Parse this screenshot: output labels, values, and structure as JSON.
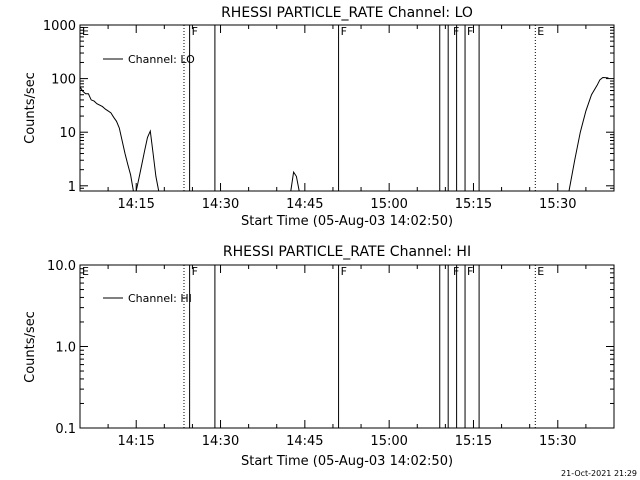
{
  "chart_data": [
    {
      "type": "line",
      "title": "RHESSI PARTICLE_RATE Channel: LO",
      "xlabel": "Start Time (05-Aug-03 14:02:50)",
      "ylabel": "Counts/sec",
      "yscale": "log",
      "ylim": [
        0.8,
        1000
      ],
      "xlim": [
        "14:05:00",
        "15:40:00"
      ],
      "xticks": [
        "14:15",
        "14:30",
        "14:45",
        "15:00",
        "15:15",
        "15:30"
      ],
      "yticks": [
        "1",
        "10",
        "100",
        "1000"
      ],
      "legend": {
        "label": "Channel: LO",
        "position": "top-left"
      },
      "series": [
        {
          "name": "Channel: LO",
          "segments": [
            {
              "x": [
                "14:05:00",
                "14:05:30",
                "14:06:00",
                "14:06:30",
                "14:07:00",
                "14:07:30",
                "14:08:00",
                "14:09:00",
                "14:09:30",
                "14:10:00",
                "14:10:30",
                "14:11:00",
                "14:11:30",
                "14:12:00",
                "14:13:00",
                "14:13:30",
                "14:14:00",
                "14:14:30",
                "14:15:00",
                "14:15:30",
                "14:16:00",
                "14:16:30",
                "14:17:00",
                "14:17:30",
                "14:18:00",
                "14:18:30",
                "14:19:00",
                "14:19:30"
              ],
              "y": [
                70,
                58,
                52,
                52,
                40,
                38,
                34,
                30,
                27,
                25,
                23,
                19,
                16,
                12,
                4,
                2.5,
                1.6,
                0.8,
                0.8,
                1.4,
                2.5,
                4.5,
                8,
                10.5,
                4,
                1.5,
                0.8,
                0.8
              ]
            },
            {
              "x": [
                "14:42:30",
                "14:43:00",
                "14:43:30",
                "14:44:00"
              ],
              "y": [
                0.8,
                1.8,
                1.5,
                0.8
              ]
            },
            {
              "x": [
                "15:32:00",
                "15:33:00",
                "15:34:00",
                "15:35:00",
                "15:36:00",
                "15:37:00",
                "15:37:30",
                "15:38:00",
                "15:39:00"
              ],
              "y": [
                0.8,
                3,
                10,
                25,
                50,
                75,
                95,
                105,
                103
              ]
            }
          ]
        }
      ]
    },
    {
      "type": "line",
      "title": "RHESSI PARTICLE_RATE Channel: HI",
      "xlabel": "Start Time (05-Aug-03 14:02:50)",
      "ylabel": "Counts/sec",
      "yscale": "log",
      "ylim": [
        0.1,
        10
      ],
      "xlim": [
        "14:05:00",
        "15:40:00"
      ],
      "xticks": [
        "14:15",
        "14:30",
        "14:45",
        "15:00",
        "15:15",
        "15:30"
      ],
      "yticks": [
        "0.1",
        "1.0",
        "10.0"
      ],
      "legend": {
        "label": "Channel: HI",
        "position": "top-left"
      },
      "series": [
        {
          "name": "Channel: HI",
          "segments": []
        }
      ]
    }
  ],
  "markers": {
    "solid": [
      "14:24:30",
      "14:29:00",
      "14:51:00",
      "15:09:00",
      "15:10:30",
      "15:12:00",
      "15:13:30",
      "15:16:00"
    ],
    "dotted": [
      "14:23:30",
      "15:26:00",
      "15:40:00"
    ],
    "labels": [
      {
        "text": "E",
        "x": "14:05:00"
      },
      {
        "text": "F",
        "x": "14:24:30"
      },
      {
        "text": "F",
        "x": "14:51:00"
      },
      {
        "text": "F",
        "x": "15:11:00"
      },
      {
        "text": "F",
        "x": "15:13:30"
      },
      {
        "text": "E",
        "x": "15:26:00"
      }
    ]
  },
  "footer": "21-Oct-2021 21:29"
}
